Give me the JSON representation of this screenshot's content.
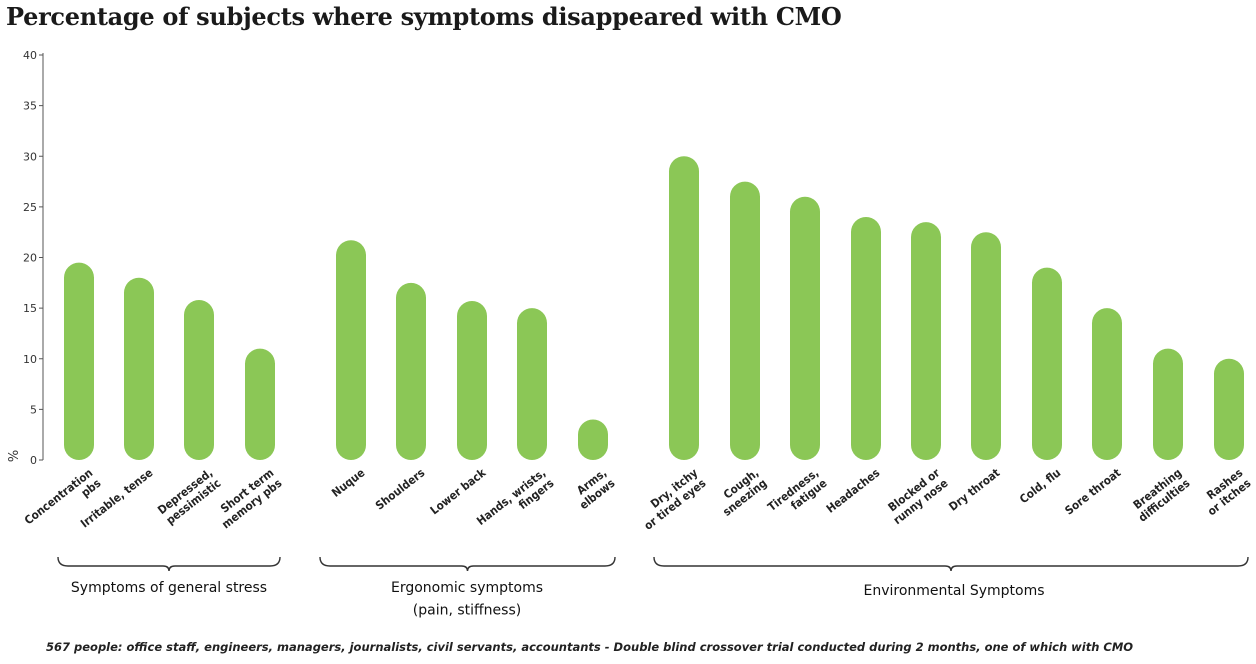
{
  "chart_data": {
    "type": "bar",
    "title": "Percentage of subjects where symptoms disappeared with CMO",
    "ylabel": "%",
    "ylim": [
      0,
      40
    ],
    "yticks": [
      0,
      5,
      10,
      15,
      20,
      25,
      30,
      35,
      40
    ],
    "bar_color": "#8bc756",
    "categories": [
      [
        "Concentration",
        "pbs"
      ],
      [
        "Irritable, tense"
      ],
      [
        "Depressed,",
        "pessimistic"
      ],
      [
        "Short term",
        "memory pbs"
      ],
      [
        "Nuque"
      ],
      [
        "Shoulders"
      ],
      [
        "Lower back"
      ],
      [
        "Hands, wrists,",
        "fingers"
      ],
      [
        "Arms,",
        "elbows"
      ],
      [
        "Dry, itchy",
        "or tired eyes"
      ],
      [
        "Cough,",
        "sneezing"
      ],
      [
        "Tiredness,",
        "fatigue"
      ],
      [
        "Headaches"
      ],
      [
        "Blocked or",
        "runny nose"
      ],
      [
        "Dry throat"
      ],
      [
        "Cold, flu"
      ],
      [
        "Sore throat"
      ],
      [
        "Breathing",
        "difficulties"
      ],
      [
        "Rashes",
        "or itches"
      ]
    ],
    "values": [
      19.5,
      18,
      15.8,
      11,
      21.7,
      17.5,
      15.7,
      15,
      4,
      30,
      27.5,
      26,
      24,
      23.5,
      22.5,
      19,
      15,
      11,
      10
    ],
    "groups": [
      {
        "label": [
          "Symptoms of general stress"
        ],
        "start": 0,
        "end": 3
      },
      {
        "label": [
          "Ergonomic symptoms",
          "(pain, stiffness)"
        ],
        "start": 4,
        "end": 8
      },
      {
        "label": [
          "Environmental Symptoms"
        ],
        "start": 9,
        "end": 18
      }
    ]
  },
  "footnote": "567 people: office staff, engineers, managers, journalists, civil servants, accountants - Double blind crossover trial conducted during 2 months, one of which with CMO"
}
